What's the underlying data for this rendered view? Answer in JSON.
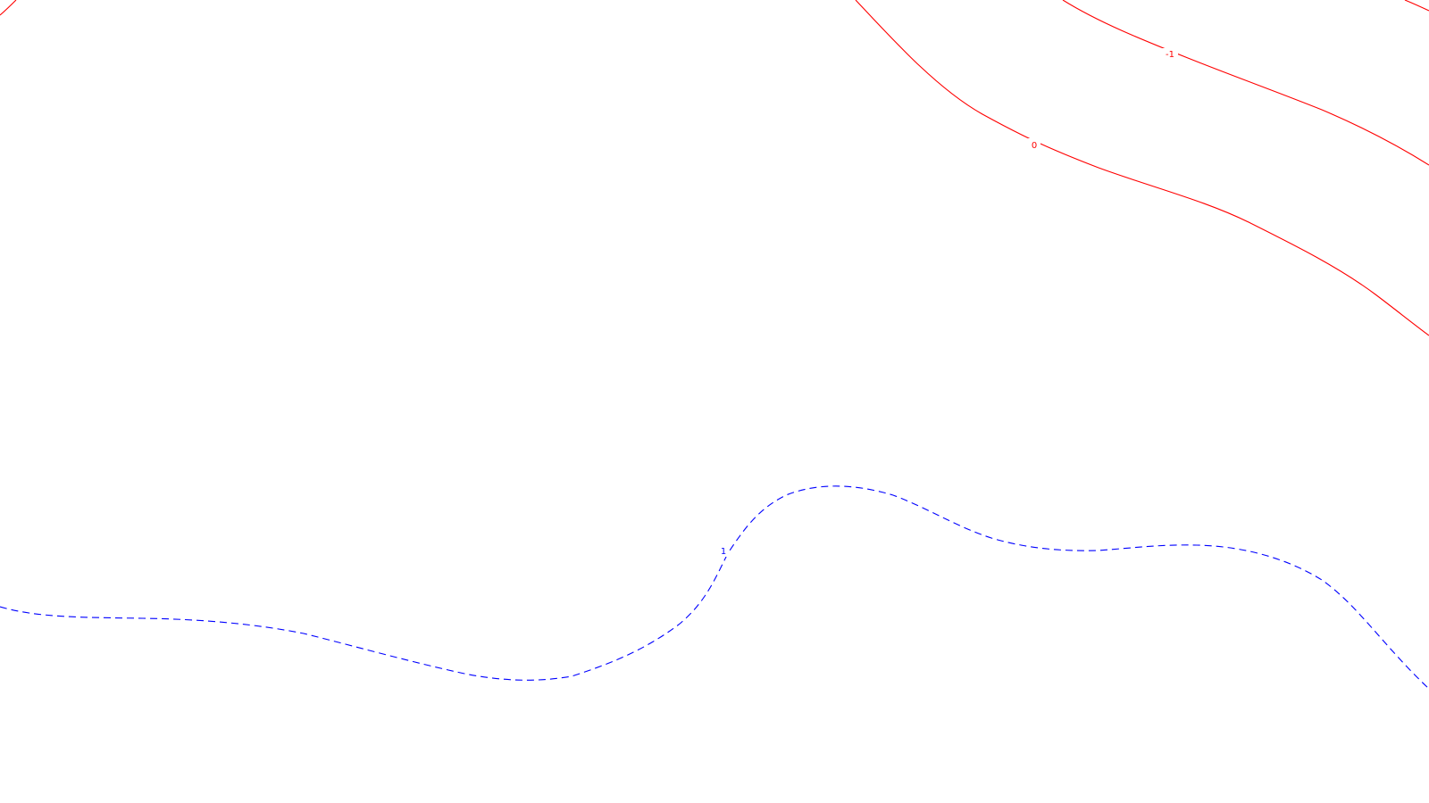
{
  "colors": {
    "background": "#ffffff",
    "negative_contour": "#ff0000",
    "positive_contour": "#0000ff"
  },
  "contours": [
    {
      "level": 0,
      "label": "0",
      "style": "solid",
      "color": "#ff0000"
    },
    {
      "level": -1,
      "label": "-1",
      "style": "solid",
      "color": "#ff0000"
    },
    {
      "level": 1,
      "label": "1",
      "style": "dashed",
      "color": "#0000ff"
    }
  ]
}
